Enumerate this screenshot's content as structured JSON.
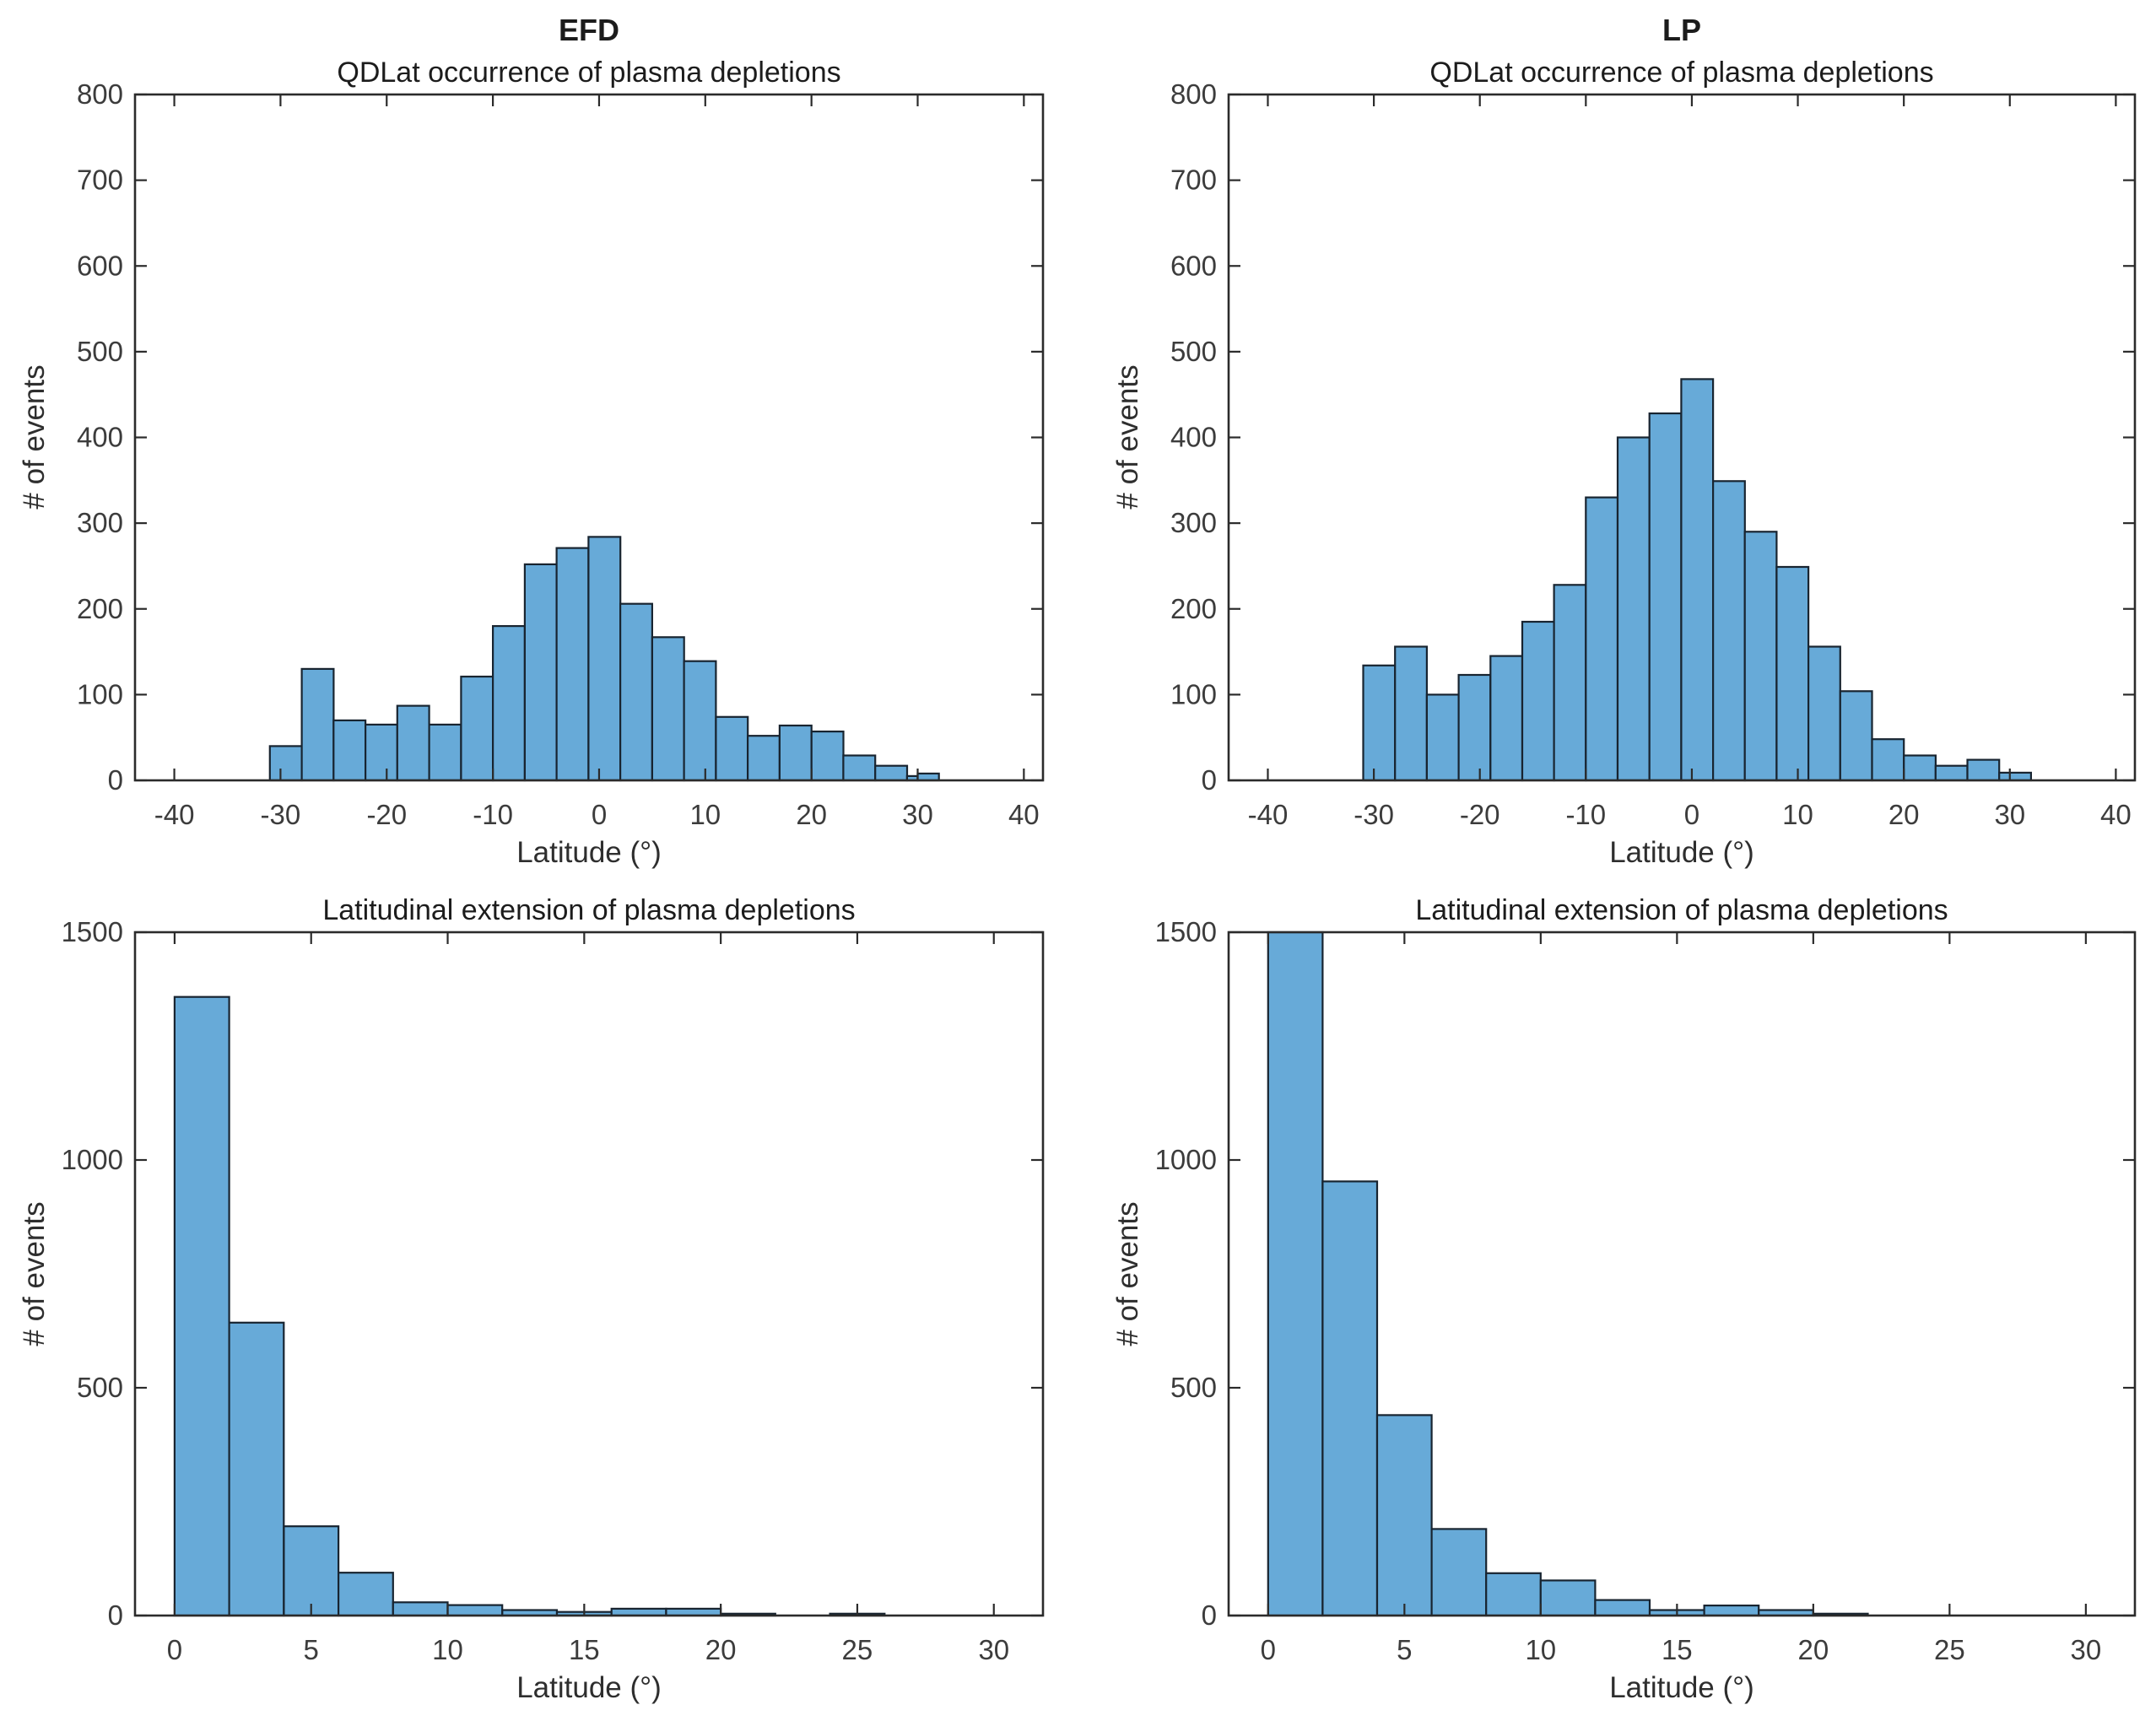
{
  "figure": {
    "description": "2x2 grid of MATLAB-style histograms comparing EFD and LP instruments",
    "background": "#ffffff"
  },
  "styles": {
    "bar_fill": "#67aad8",
    "bar_edge": "#182430",
    "axis_color": "#2b2b2b",
    "tick_label_color": "#3c3c3c",
    "title_color": "#1c1c1c"
  },
  "chart_data": [
    {
      "id": "efd-qdlat",
      "type": "bar",
      "column_title": "EFD",
      "title": "QDLat occurrence of plasma depletions",
      "xlabel": "Latitude (°)",
      "ylabel": "# of events",
      "xlim": [
        -43.7,
        41.8
      ],
      "ylim": [
        0,
        800
      ],
      "xticks": [
        -40,
        -30,
        -20,
        -10,
        0,
        10,
        20,
        30,
        40
      ],
      "yticks": [
        0,
        100,
        200,
        300,
        400,
        500,
        600,
        700,
        800
      ],
      "grid": false,
      "legend": null,
      "bin_edges": [
        -31,
        -28,
        -25,
        -22,
        -19,
        -16,
        -13,
        -10,
        -7,
        -4,
        -1,
        2,
        5,
        8,
        11,
        14,
        17,
        20,
        23,
        26,
        29,
        30,
        32
      ],
      "values": [
        40,
        130,
        70,
        65,
        87,
        65,
        121,
        180,
        252,
        271,
        284,
        206,
        167,
        139,
        74,
        52,
        64,
        57,
        29,
        17,
        5,
        8
      ]
    },
    {
      "id": "lp-qdlat",
      "type": "bar",
      "column_title": "LP",
      "title": "QDLat occurrence of plasma depletions",
      "xlabel": "Latitude (°)",
      "ylabel": "# of events",
      "xlim": [
        -43.7,
        41.8
      ],
      "ylim": [
        0,
        800
      ],
      "xticks": [
        -40,
        -30,
        -20,
        -10,
        0,
        10,
        20,
        30,
        40
      ],
      "yticks": [
        0,
        100,
        200,
        300,
        400,
        500,
        600,
        700,
        800
      ],
      "grid": false,
      "legend": null,
      "bin_edges": [
        -31,
        -28,
        -25,
        -22,
        -19,
        -16,
        -13,
        -10,
        -7,
        -4,
        -1,
        2,
        5,
        8,
        11,
        14,
        17,
        20,
        23,
        26,
        29,
        32
      ],
      "values": [
        134,
        156,
        100,
        123,
        145,
        185,
        228,
        330,
        400,
        428,
        468,
        349,
        290,
        249,
        156,
        104,
        48,
        29,
        17,
        24,
        9
      ]
    },
    {
      "id": "efd-latitudinal-extension",
      "type": "bar",
      "column_title": "",
      "title": "Latitudinal extension of plasma depletions",
      "xlabel": "Latitude (°)",
      "ylabel": "# of events",
      "xlim": [
        -1.45,
        31.8
      ],
      "ylim": [
        0,
        1500
      ],
      "xticks": [
        0,
        5,
        10,
        15,
        20,
        25,
        30
      ],
      "yticks": [
        0,
        500,
        1000,
        1500
      ],
      "grid": false,
      "legend": null,
      "bin_edges": [
        0,
        2,
        4,
        6,
        8,
        10,
        12,
        14,
        16,
        18,
        20,
        22,
        24,
        26
      ],
      "values": [
        1358,
        643,
        196,
        94,
        29,
        23,
        12,
        8,
        15,
        15,
        4,
        0,
        4
      ]
    },
    {
      "id": "lp-latitudinal-extension",
      "type": "bar",
      "column_title": "",
      "title": "Latitudinal extension of plasma depletions",
      "xlabel": "Latitude (°)",
      "ylabel": "# of events",
      "xlim": [
        -1.45,
        31.8
      ],
      "ylim": [
        0,
        1500
      ],
      "xticks": [
        0,
        5,
        10,
        15,
        20,
        25,
        30
      ],
      "yticks": [
        0,
        500,
        1000,
        1500
      ],
      "grid": false,
      "legend": null,
      "first_bin_clipped": true,
      "bin_edges": [
        0,
        2,
        4,
        6,
        8,
        10,
        12,
        14,
        16,
        18,
        20,
        22
      ],
      "values": [
        1500,
        953,
        440,
        190,
        93,
        77,
        34,
        12,
        22,
        12,
        4
      ]
    }
  ]
}
